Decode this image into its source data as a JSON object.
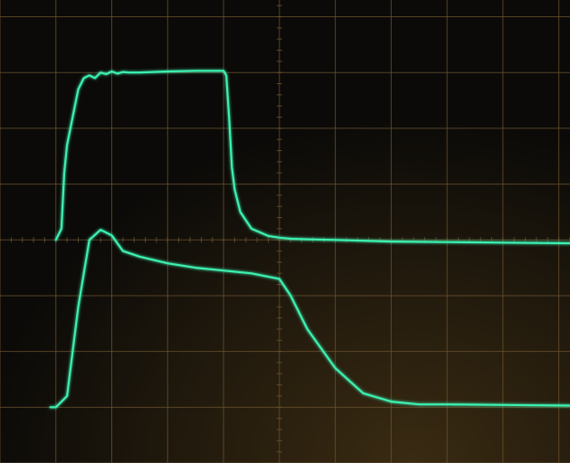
{
  "colors": {
    "background": "#0b0a08",
    "glow": "#3a2b12",
    "graticule": "#6e5430",
    "trace": "#3df0b0",
    "trace_glow": "#1a9c72"
  },
  "chart_data": {
    "type": "line",
    "title": "",
    "xlabel": "",
    "ylabel": "",
    "grid": true,
    "x_divisions": 10,
    "y_divisions": 8,
    "xlim": [
      -1,
      9.2
    ],
    "ylim": [
      -4.0,
      4.3
    ],
    "series": [
      {
        "x": [
          0.0,
          0.1,
          0.15,
          0.2,
          0.3,
          0.4,
          0.5,
          0.6,
          0.7,
          0.8,
          0.9,
          1.0,
          1.1,
          1.2,
          1.3,
          1.5,
          2.0,
          2.5,
          3.0,
          3.05,
          3.1,
          3.15,
          3.2,
          3.3,
          3.5,
          3.8,
          4.0,
          4.2,
          4.5,
          5.0,
          6.0,
          7.0,
          8.0,
          9.2
        ],
        "values": [
          0.0,
          0.2,
          1.2,
          1.7,
          2.2,
          2.7,
          2.9,
          2.95,
          2.9,
          3.0,
          2.97,
          3.02,
          2.98,
          3.01,
          3.0,
          3.0,
          3.02,
          3.03,
          3.03,
          2.95,
          2.2,
          1.3,
          0.9,
          0.5,
          0.2,
          0.07,
          0.04,
          0.02,
          0.01,
          0.0,
          -0.03,
          -0.04,
          -0.05,
          -0.06
        ]
      },
      {
        "x": [
          -0.1,
          0.0,
          0.2,
          0.4,
          0.6,
          0.8,
          1.0,
          1.2,
          1.5,
          2.0,
          2.5,
          3.0,
          3.5,
          4.0,
          4.2,
          4.5,
          5.0,
          5.5,
          6.0,
          6.5,
          7.0,
          8.0,
          9.2
        ],
        "values": [
          -3.0,
          -3.0,
          -2.8,
          -1.2,
          0.0,
          0.18,
          0.08,
          -0.2,
          -0.3,
          -0.42,
          -0.5,
          -0.55,
          -0.6,
          -0.7,
          -1.0,
          -1.6,
          -2.3,
          -2.75,
          -2.9,
          -2.95,
          -2.95,
          -2.96,
          -2.97
        ]
      }
    ]
  }
}
